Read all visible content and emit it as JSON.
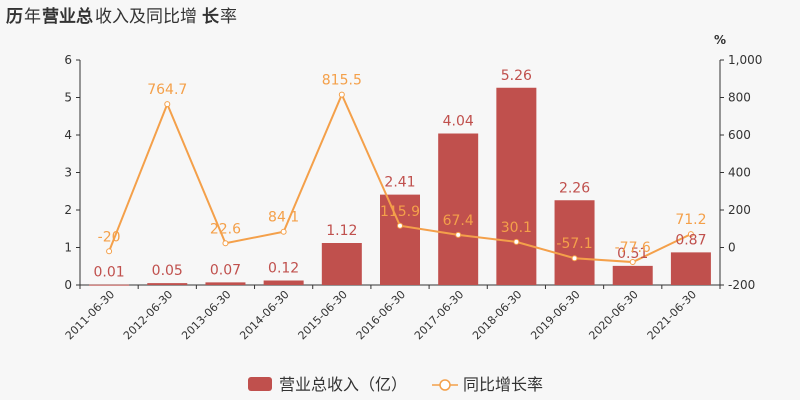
{
  "title": {
    "p1": "历",
    "p2": "年",
    "p3": "营业总",
    "p4": "收入及同比增",
    "p5": "长",
    "p6": "率"
  },
  "colors": {
    "bar": "#c0504d",
    "line": "#f4a04a",
    "axis": "#333333",
    "grid": "#e6e6e6"
  },
  "chart_data": {
    "type": "bar",
    "categories": [
      "2011-06-30",
      "2012-06-30",
      "2013-06-30",
      "2014-06-30",
      "2015-06-30",
      "2016-06-30",
      "2017-06-30",
      "2018-06-30",
      "2019-06-30",
      "2020-06-30",
      "2021-06-30"
    ],
    "series": [
      {
        "name": "营业总收入（亿）",
        "type": "bar",
        "axis": "left",
        "values": [
          0.01,
          0.05,
          0.07,
          0.12,
          1.12,
          2.41,
          4.04,
          5.26,
          2.26,
          0.51,
          0.87
        ],
        "labels": [
          "0.01",
          "0.05",
          "0.07",
          "0.12",
          "1.12",
          "2.41",
          "4.04",
          "5.26",
          "2.26",
          "0.51",
          "0.87"
        ]
      },
      {
        "name": "同比增长率",
        "type": "line",
        "axis": "right",
        "values": [
          -20,
          764.7,
          22.6,
          84.1,
          815.5,
          115.9,
          67.4,
          30.1,
          -57.1,
          -77.6,
          71.2
        ],
        "labels": [
          "-20",
          "764.7",
          "22.6",
          "84.1",
          "815.5",
          "115.9",
          "67.4",
          "30.1",
          "-57.1",
          "-77.6",
          "71.2"
        ]
      }
    ],
    "yleft": {
      "range": [
        0,
        6
      ],
      "ticks": [
        "0",
        "1",
        "2",
        "3",
        "4",
        "5",
        "6"
      ]
    },
    "yright": {
      "unit": "%",
      "range": [
        -200,
        1000
      ],
      "ticks": [
        "-200",
        "0",
        "200",
        "400",
        "600",
        "800",
        "1,000"
      ]
    },
    "legend": "bottom-center"
  }
}
